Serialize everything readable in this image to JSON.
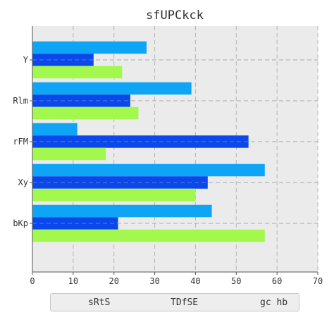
{
  "chart_data": {
    "type": "bar",
    "orientation": "horizontal",
    "title": "sfUPCkck",
    "xlabel": "",
    "ylabel": "",
    "xlim": [
      0,
      70
    ],
    "xticks": [
      0,
      10,
      20,
      30,
      40,
      50,
      60,
      70
    ],
    "grid": true,
    "legend_position": "bottom",
    "categories": [
      "Y",
      "Rlm",
      "rFM",
      "Xy",
      "bKp"
    ],
    "series": [
      {
        "name": "sRtS",
        "color": "#0ea5f7",
        "values": [
          28,
          39,
          11,
          57,
          44
        ]
      },
      {
        "name": "TDfSE",
        "color": "#0a48ec",
        "values": [
          15,
          24,
          53,
          43,
          21
        ]
      },
      {
        "name": "gc hb",
        "color": "#a3f84e",
        "values": [
          22,
          26,
          18,
          40,
          57
        ]
      }
    ]
  }
}
